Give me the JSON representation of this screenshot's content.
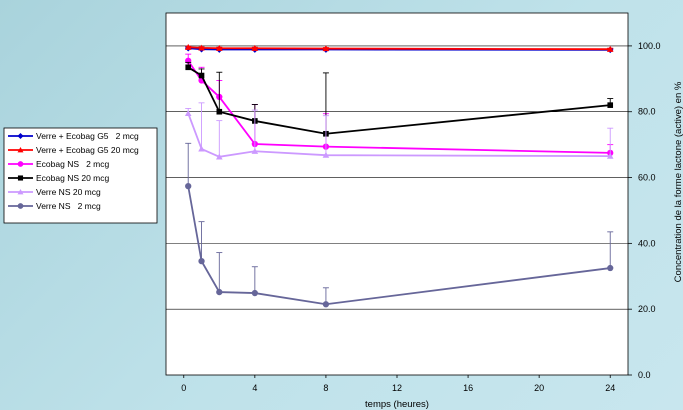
{
  "chart_data": {
    "type": "line",
    "xlabel": "temps (heures)",
    "ylabel": "Concentration de la forme lactone (active) en %",
    "xlim": [
      -1,
      25
    ],
    "ylim": [
      0,
      110
    ],
    "x_ticks": [
      "0",
      "4",
      "8",
      "12",
      "16",
      "20",
      "24"
    ],
    "y_ticks": [
      "0.0",
      "20.0",
      "40.0",
      "60.0",
      "80.0",
      "100.0"
    ],
    "grid": "horizontal",
    "legend_position": "left",
    "series": [
      {
        "name": "Verre + Ecobag G5   2 mcg",
        "color": "#0000cc",
        "marker": "diamond",
        "x": [
          0.25,
          1,
          2,
          4,
          8,
          24
        ],
        "y": [
          99.3,
          99.0,
          98.9,
          98.9,
          98.9,
          98.8
        ],
        "err": [
          0.4,
          0.4,
          0.4,
          0.4,
          0.4,
          0.4
        ]
      },
      {
        "name": "Verre + Ecobag G5 20 mcg",
        "color": "#ff0000",
        "marker": "triangle",
        "x": [
          0.25,
          1,
          2,
          4,
          8,
          24
        ],
        "y": [
          99.6,
          99.4,
          99.3,
          99.3,
          99.2,
          99.0
        ],
        "err": [
          0.3,
          0.3,
          0.3,
          0.3,
          0.3,
          0.3
        ]
      },
      {
        "name": "Ecobag NS   2 mcg",
        "color": "#ff00ff",
        "marker": "circle",
        "x": [
          0.25,
          1,
          2,
          4,
          8,
          24
        ],
        "y": [
          95.5,
          89.5,
          84.5,
          70.2,
          69.4,
          67.5
        ],
        "err": [
          2.0,
          4.0,
          5.0,
          12.0,
          10.0,
          2.5
        ]
      },
      {
        "name": "Ecobag NS 20 mcg",
        "color": "#000000",
        "marker": "square",
        "x": [
          0.25,
          1,
          2,
          4,
          8,
          24
        ],
        "y": [
          93.5,
          91.0,
          80.0,
          77.2,
          73.3,
          82.0
        ],
        "err": [
          1.5,
          2.0,
          12.0,
          5.0,
          18.5,
          2.0
        ]
      },
      {
        "name": "Verre NS 20 mcg",
        "color": "#cc99ff",
        "marker": "triangle",
        "x": [
          0.25,
          1,
          2,
          4,
          8,
          24
        ],
        "y": [
          79.5,
          68.7,
          66.3,
          68.0,
          66.8,
          66.5
        ],
        "err": [
          1.5,
          14.0,
          11.0,
          12.5,
          12.0,
          8.5
        ]
      },
      {
        "name": "Verre NS   2 mcg",
        "color": "#666699",
        "marker": "circle",
        "x": [
          0.25,
          1,
          2,
          4,
          8,
          24
        ],
        "y": [
          57.4,
          34.6,
          25.2,
          24.9,
          21.5,
          32.5
        ],
        "err": [
          13.0,
          12.0,
          12.0,
          8.0,
          5.0,
          11.0
        ]
      }
    ]
  }
}
